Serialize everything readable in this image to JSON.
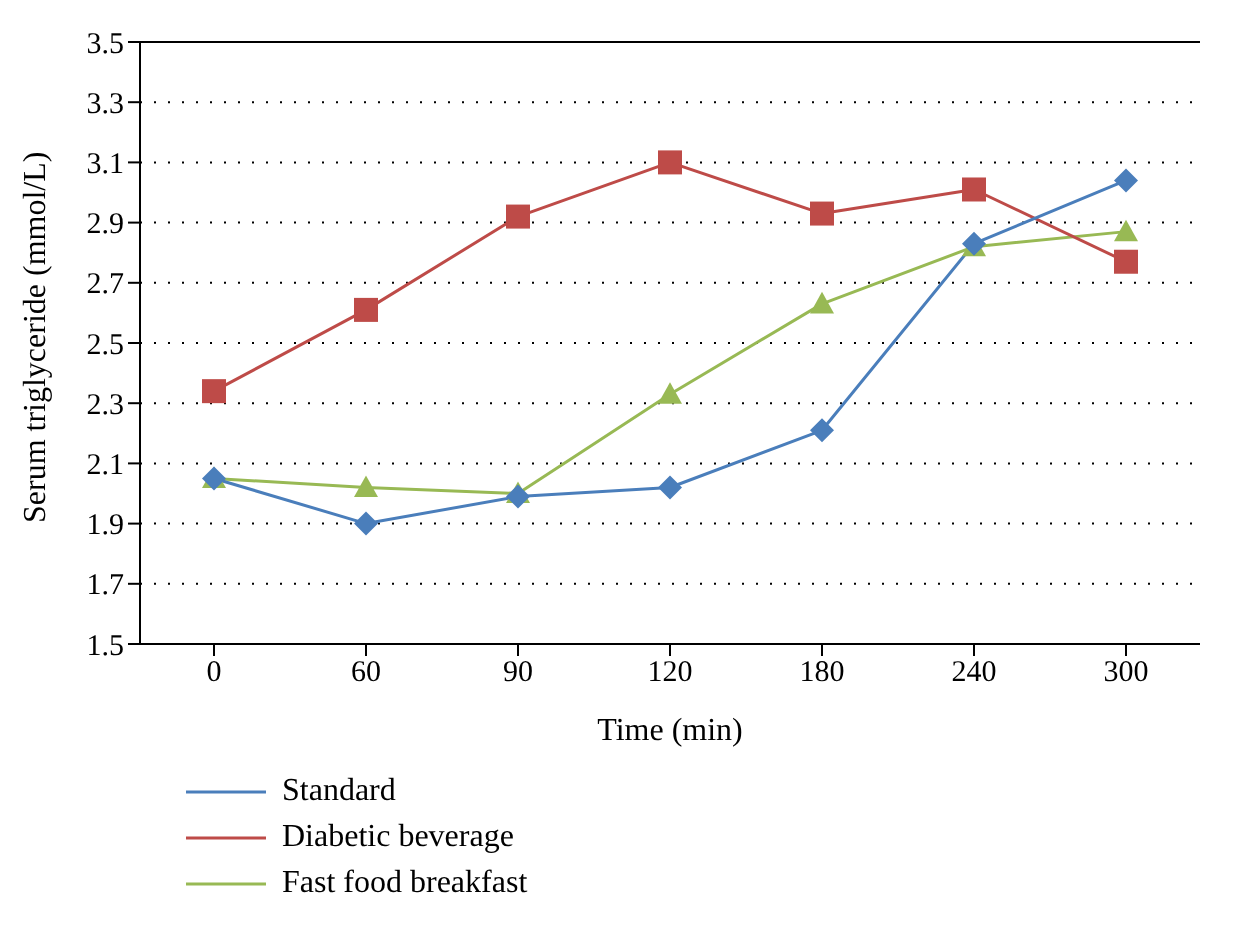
{
  "chart_data": {
    "type": "line",
    "xlabel": "Time (min)",
    "ylabel": "Serum triglyceride (mmol/L)",
    "categories": [
      "0",
      "60",
      "90",
      "120",
      "180",
      "240",
      "300"
    ],
    "series": [
      {
        "name": "Standard",
        "color": "#4a7ebb",
        "marker": "diamond",
        "values": [
          2.05,
          1.9,
          1.99,
          2.02,
          2.21,
          2.83,
          3.04
        ]
      },
      {
        "name": "Diabetic beverage",
        "color": "#be4b48",
        "marker": "square",
        "values": [
          2.34,
          2.61,
          2.92,
          3.1,
          2.93,
          3.01,
          2.77
        ]
      },
      {
        "name": "Fast food breakfast",
        "color": "#98b954",
        "marker": "triangle",
        "values": [
          2.05,
          2.02,
          2.0,
          2.33,
          2.63,
          2.82,
          2.87
        ]
      }
    ],
    "ylim": [
      1.5,
      3.5
    ],
    "yticks": [
      1.5,
      1.7,
      1.9,
      2.1,
      2.3,
      2.5,
      2.7,
      2.9,
      3.1,
      3.3,
      3.5
    ],
    "grid": "y",
    "legend": "bottom",
    "line_style": "solid"
  }
}
